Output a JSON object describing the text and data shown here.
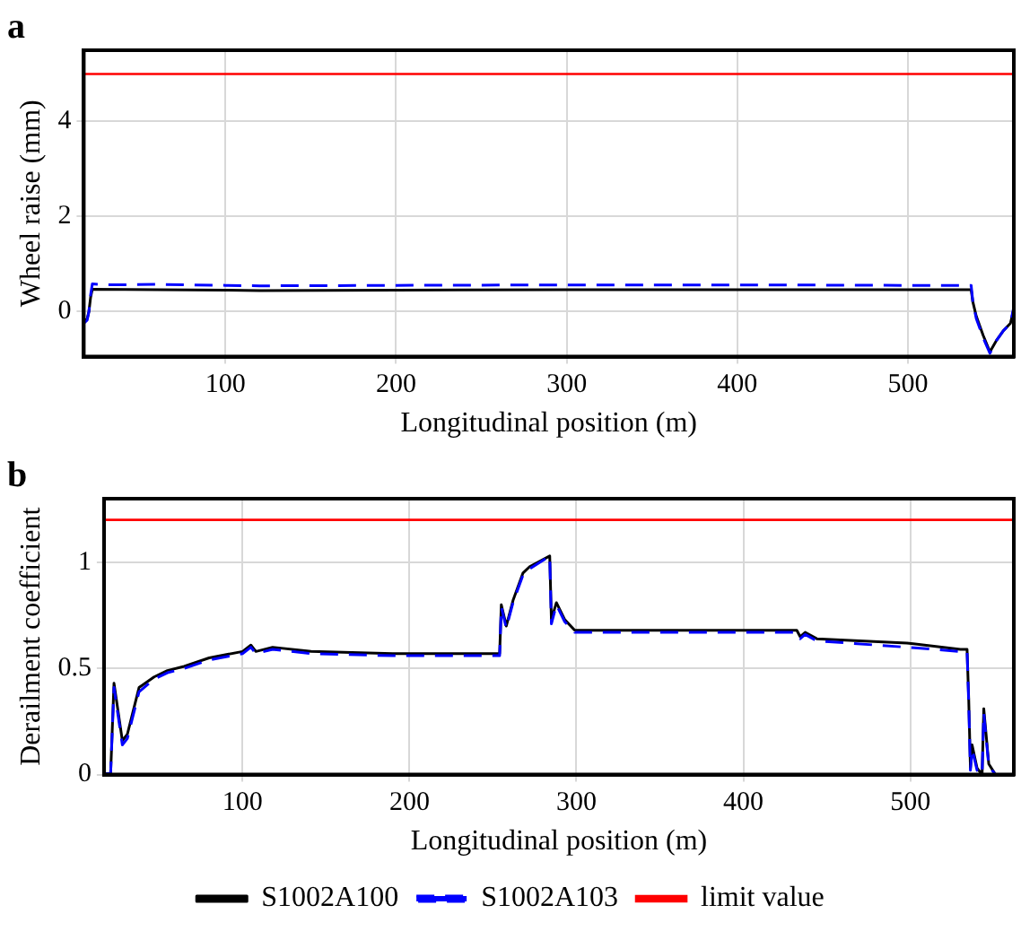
{
  "chart_data": [
    {
      "type": "line",
      "title": "a",
      "xlabel": "Longitudinal position (m)",
      "ylabel": "Wheel raise (mm)",
      "xlim": [
        17,
        562
      ],
      "xticks": [
        100,
        200,
        300,
        400,
        500
      ],
      "ylim": [
        -0.95,
        5.5
      ],
      "yticks": [
        0,
        2,
        4
      ],
      "grid": true,
      "legend": false,
      "marker": "none",
      "series": [
        {
          "color": "#000000",
          "line_style": "solid",
          "x": [
            17,
            19,
            20,
            21,
            22,
            60,
            100,
            120,
            200,
            300,
            400,
            500,
            537,
            538,
            540,
            544,
            548,
            552,
            556,
            560,
            562
          ],
          "values": [
            -0.22,
            -0.15,
            0.0,
            0.3,
            0.47,
            0.46,
            0.45,
            0.44,
            0.45,
            0.46,
            0.46,
            0.46,
            0.46,
            0.2,
            -0.1,
            -0.5,
            -0.85,
            -0.6,
            -0.4,
            -0.25,
            0.05
          ]
        },
        {
          "color": "#0000ff",
          "line_style": "dashed",
          "x": [
            17,
            19,
            20,
            21,
            22,
            30,
            60,
            100,
            120,
            200,
            300,
            400,
            500,
            537,
            538,
            540,
            544,
            548,
            552,
            556,
            560,
            562
          ],
          "values": [
            -0.25,
            -0.18,
            0.0,
            0.35,
            0.58,
            0.56,
            0.57,
            0.55,
            0.54,
            0.55,
            0.56,
            0.56,
            0.55,
            0.55,
            0.2,
            -0.15,
            -0.55,
            -0.88,
            -0.6,
            -0.4,
            -0.25,
            0.1
          ]
        }
      ],
      "ref_lines": [
        {
          "axis": "y",
          "value": 5,
          "color": "#ff0000"
        }
      ]
    },
    {
      "type": "line",
      "title": "b",
      "xlabel": "Longitudinal position (m)",
      "ylabel": "Derailment coefficient",
      "xlim": [
        17,
        562
      ],
      "xticks": [
        100,
        200,
        300,
        400,
        500
      ],
      "ylim": [
        0,
        1.3
      ],
      "yticks": [
        0,
        0.5,
        1
      ],
      "grid": true,
      "legend": "bottom",
      "marker": "none",
      "series": [
        {
          "name": "S1002A100",
          "color": "#000000",
          "line_style": "solid",
          "x": [
            17,
            21,
            23,
            28,
            31,
            38,
            47,
            55,
            65,
            80,
            100,
            105,
            108,
            118,
            141,
            190,
            254,
            255,
            258,
            262,
            268,
            272,
            284,
            285,
            288,
            293,
            299,
            334,
            432,
            434,
            437,
            444,
            498,
            530,
            534,
            535,
            536,
            537,
            540,
            543,
            544,
            547,
            551,
            561
          ],
          "values": [
            0,
            0.01,
            0.43,
            0.16,
            0.19,
            0.41,
            0.46,
            0.49,
            0.51,
            0.55,
            0.58,
            0.61,
            0.58,
            0.6,
            0.58,
            0.57,
            0.57,
            0.8,
            0.7,
            0.82,
            0.95,
            0.98,
            1.03,
            0.73,
            0.81,
            0.73,
            0.68,
            0.68,
            0.68,
            0.65,
            0.67,
            0.64,
            0.62,
            0.59,
            0.59,
            0.35,
            0.03,
            0.14,
            0.03,
            0,
            0.31,
            0.05,
            0,
            0
          ]
        },
        {
          "name": "S1002A103",
          "color": "#0000ff",
          "line_style": "dashed",
          "x": [
            17,
            21,
            23,
            28,
            31,
            38,
            47,
            55,
            65,
            80,
            100,
            105,
            108,
            118,
            141,
            190,
            254,
            255,
            258,
            262,
            268,
            272,
            284,
            285,
            288,
            293,
            299,
            334,
            432,
            434,
            437,
            444,
            498,
            530,
            534,
            535,
            536,
            537,
            540,
            543,
            544,
            547,
            551,
            561
          ],
          "values": [
            0,
            0.01,
            0.41,
            0.14,
            0.17,
            0.39,
            0.45,
            0.48,
            0.5,
            0.54,
            0.57,
            0.6,
            0.57,
            0.59,
            0.57,
            0.56,
            0.56,
            0.79,
            0.69,
            0.81,
            0.94,
            0.97,
            1.03,
            0.71,
            0.8,
            0.72,
            0.67,
            0.67,
            0.67,
            0.64,
            0.66,
            0.63,
            0.6,
            0.58,
            0.58,
            0.33,
            0.02,
            0.12,
            0.02,
            0,
            0.29,
            0.04,
            0,
            0
          ]
        }
      ],
      "ref_lines": [
        {
          "axis": "y",
          "value": 1.2,
          "label": "limit value",
          "color": "#ff0000"
        }
      ]
    }
  ]
}
